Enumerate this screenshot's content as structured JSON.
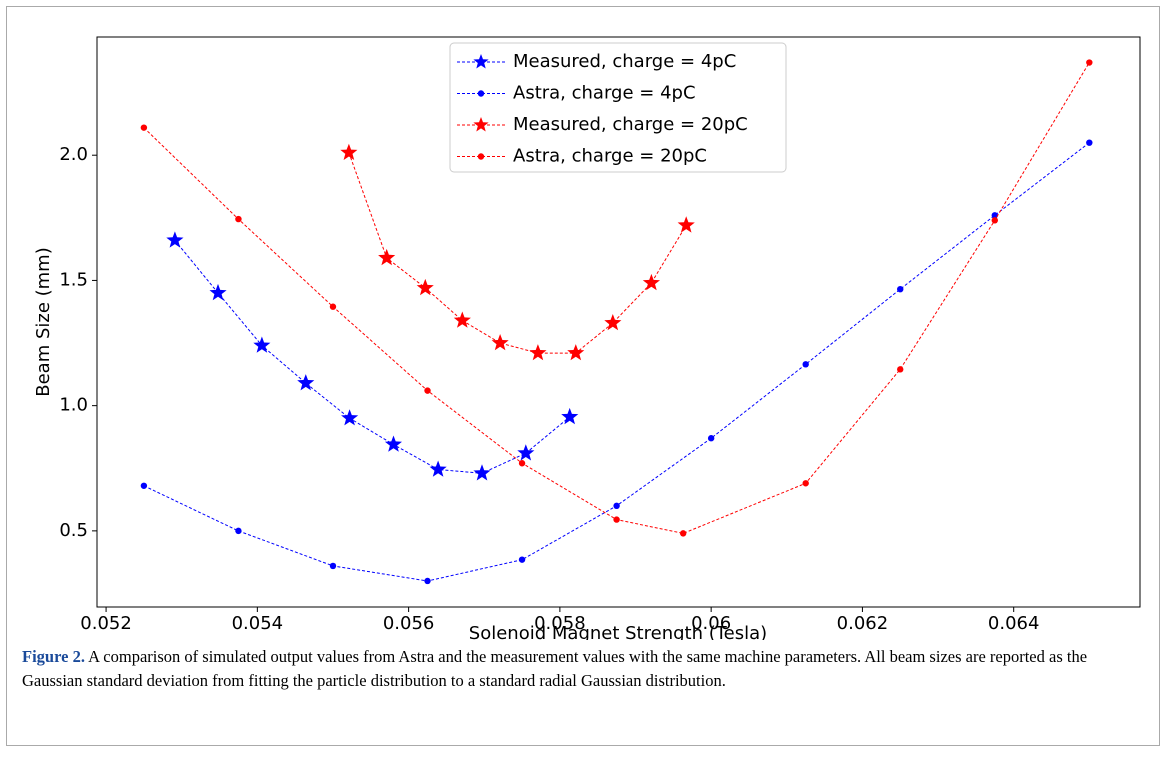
{
  "chart_data": {
    "type": "line",
    "xlabel": "Solenoid Magnet Strength (Tesla)",
    "ylabel": "Beam Size (mm)",
    "xlim": [
      0.05188,
      0.06567
    ],
    "ylim": [
      0.196,
      2.472
    ],
    "xticks": [
      0.052,
      0.054,
      0.056,
      0.058,
      0.06,
      0.062,
      0.064
    ],
    "yticks": [
      0.5,
      {
        "value": 1,
        "label": "1.0"
      },
      1.5,
      {
        "value": 2,
        "label": "2.0"
      }
    ],
    "legend": "upper center",
    "series": [
      {
        "name": "Measured, charge = 4pC",
        "color": "#0000ff",
        "marker": "star",
        "x": [
          0.05291,
          0.05348,
          0.05406,
          0.05464,
          0.05522,
          0.0558,
          0.05639,
          0.05697,
          0.05755,
          0.05813
        ],
        "values": [
          1.66,
          1.45,
          1.24,
          1.09,
          0.95,
          0.845,
          0.745,
          0.73,
          0.81,
          0.955
        ]
      },
      {
        "name": "Astra, charge = 4pC",
        "color": "#0000ff",
        "marker": "dot",
        "x": [
          0.0525,
          0.05375,
          0.055,
          0.05625,
          0.0575,
          0.05875,
          0.06,
          0.06125,
          0.0625,
          0.06375,
          0.065
        ],
        "values": [
          0.68,
          0.5,
          0.36,
          0.3,
          0.385,
          0.6,
          0.87,
          1.165,
          1.465,
          1.76,
          2.05
        ]
      },
      {
        "name": "Measured, charge = 20pC",
        "color": "#ff0000",
        "marker": "star",
        "x": [
          0.05521,
          0.05571,
          0.05622,
          0.05671,
          0.05721,
          0.05771,
          0.05821,
          0.0587,
          0.05921,
          0.05967
        ],
        "values": [
          2.01,
          1.59,
          1.47,
          1.34,
          1.25,
          1.21,
          1.21,
          1.33,
          1.49,
          1.72
        ]
      },
      {
        "name": "Astra, charge = 20pC",
        "color": "#ff0000",
        "marker": "dot",
        "x": [
          0.0525,
          0.05375,
          0.055,
          0.05625,
          0.0575,
          0.05875,
          0.05963,
          0.06125,
          0.0625,
          0.06375,
          0.065
        ],
        "values": [
          2.11,
          1.745,
          1.395,
          1.06,
          0.77,
          0.545,
          0.49,
          0.69,
          1.145,
          1.74,
          2.37
        ]
      }
    ]
  },
  "caption": {
    "label": "Figure 2.",
    "text": " A comparison of simulated output values from Astra and the measurement values with the same machine parameters. All beam sizes are reported as the Gaussian standard deviation from fitting the particle distribution to a standard radial Gaussian distribution."
  }
}
